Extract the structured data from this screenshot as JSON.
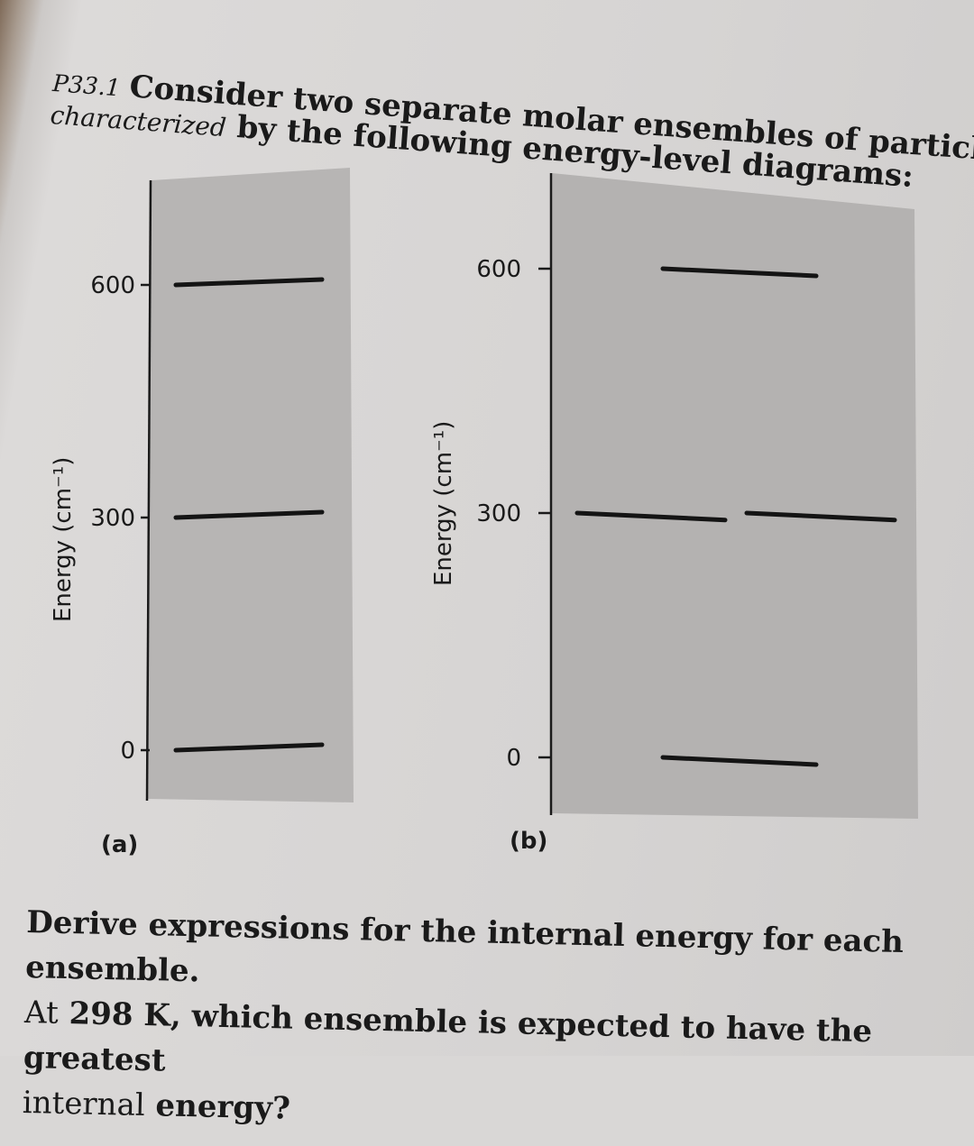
{
  "problem": {
    "number": "P33.1",
    "line1": "Consider two separate molar ensembles of particles",
    "line2_prefix": "characterized",
    "line2_rest": " by the following energy-level diagrams:"
  },
  "diagrams": [
    {
      "label": "(a)",
      "ylabel": "Energy (cm⁻¹)",
      "ticks": [
        0,
        300,
        600
      ],
      "levels": [
        {
          "energy": 0,
          "degeneracy": 1
        },
        {
          "energy": 300,
          "degeneracy": 1
        },
        {
          "energy": 600,
          "degeneracy": 1
        }
      ]
    },
    {
      "label": "(b)",
      "ylabel": "Energy (cm⁻¹)",
      "ticks": [
        0,
        300,
        600
      ],
      "levels": [
        {
          "energy": 0,
          "degeneracy": 1
        },
        {
          "energy": 300,
          "degeneracy": 2
        },
        {
          "energy": 600,
          "degeneracy": 1
        }
      ]
    }
  ],
  "question": {
    "line1": "Derive expressions for the internal energy for each ensemble.",
    "line2_pre": "At",
    "line2_rest": " 298 K, which ensemble is expected to have the greatest",
    "line3_pre": "internal",
    "line3_rest": " energy?"
  }
}
